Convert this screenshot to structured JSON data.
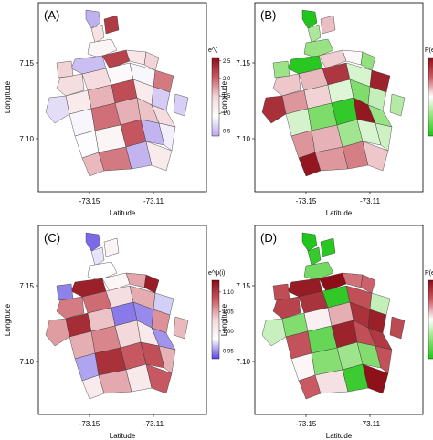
{
  "figure": {
    "panels": [
      {
        "id": "A",
        "label": "(A)",
        "ylabel": "Longitude",
        "xlabel": "Latitude",
        "legend_title": "e^ζ",
        "legend_ticks": [
          "2.5",
          "2.0",
          "1.5",
          "1.0",
          "0.5"
        ],
        "legend_tick_values": [
          2.5,
          2.0,
          1.5,
          1.0,
          0.5
        ],
        "legend_range": [
          0.35,
          2.6
        ],
        "legend_colors": [
          "#8b0d16",
          "#c95a63",
          "#f3d7da",
          "#ffffff",
          "#b9a8ee"
        ],
        "yticks": [
          "7.15",
          "7.10"
        ],
        "xticks": [
          "-73.15",
          "-73.11"
        ],
        "show_xticks": false
      },
      {
        "id": "B",
        "label": "(B)",
        "ylabel": "Longitude",
        "xlabel": "Latitude",
        "legend_title": "P(e^ζ>1|O)",
        "legend_ticks": [
          "1.00",
          "0.75",
          "0.50",
          "0.25",
          "0.00"
        ],
        "legend_tick_values": [
          1.0,
          0.75,
          0.5,
          0.25,
          0.0
        ],
        "legend_range": [
          0.0,
          1.0
        ],
        "legend_colors": [
          "#8b0d16",
          "#c95a63",
          "#ffffff",
          "#8fe07a",
          "#22c51b"
        ],
        "yticks": [
          "7.15",
          "7.10"
        ],
        "xticks": [
          "-73.15",
          "-73.11"
        ],
        "show_xticks": true
      },
      {
        "id": "C",
        "label": "(C)",
        "ylabel": "Longitude",
        "xlabel": "Latitude",
        "legend_title": "e^ψ(i)",
        "legend_ticks": [
          "1.10",
          "1.05",
          "1.00",
          "0.95"
        ],
        "legend_tick_values": [
          1.1,
          1.05,
          1.0,
          0.95
        ],
        "legend_range": [
          0.93,
          1.13
        ],
        "legend_colors": [
          "#8b0d16",
          "#c95a63",
          "#f3d7da",
          "#ffffff",
          "#5a44e0"
        ],
        "yticks": [
          "7.15",
          "7.10"
        ],
        "xticks": [
          "-73.15",
          "-73.11"
        ],
        "show_xticks": true
      },
      {
        "id": "D",
        "label": "(D)",
        "ylabel": "Longitude",
        "xlabel": "Latitude",
        "legend_title": "P(e^ψ(i)>1|O)",
        "legend_ticks": [
          "1.00",
          "0.75",
          "0.50",
          "0.25",
          "0.00"
        ],
        "legend_tick_values": [
          1.0,
          0.75,
          0.5,
          0.25,
          0.0
        ],
        "legend_range": [
          0.0,
          1.0
        ],
        "legend_colors": [
          "#8b0d16",
          "#c95a63",
          "#ffffff",
          "#8fe07a",
          "#22c51b"
        ],
        "yticks": [
          "7.15",
          "7.10"
        ],
        "xticks": [
          "-73.15",
          "-73.11"
        ],
        "show_xticks": true
      }
    ]
  }
}
